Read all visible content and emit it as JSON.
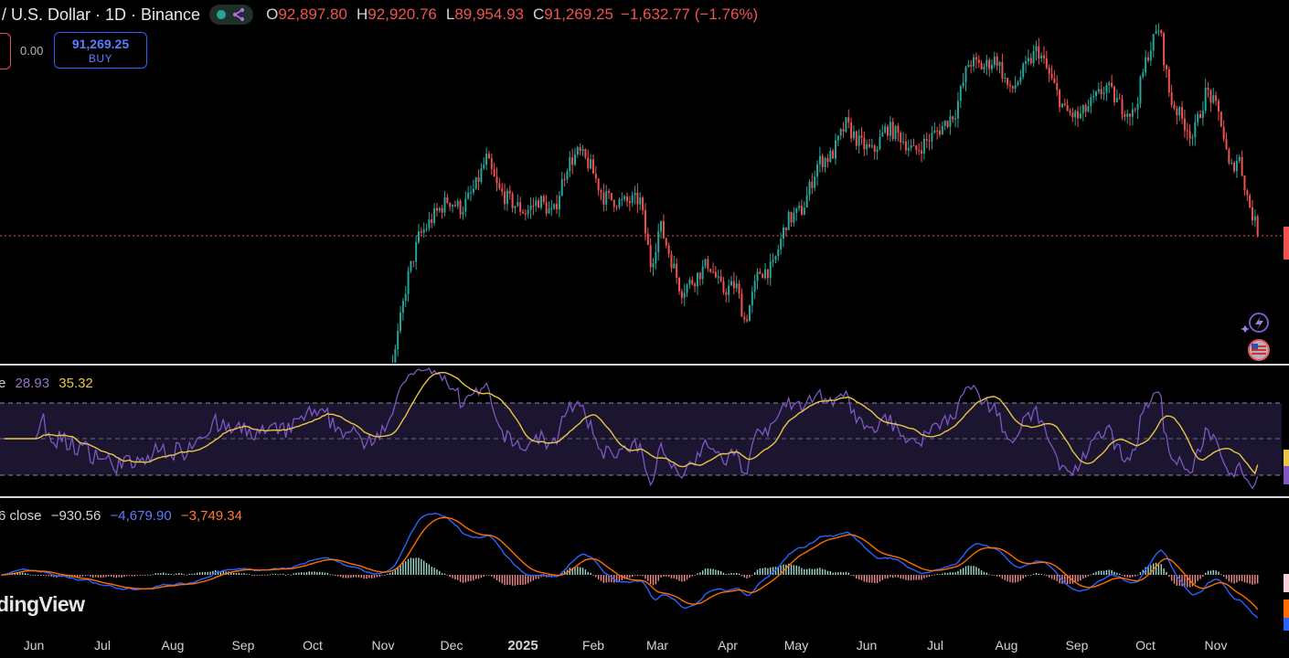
{
  "header": {
    "symbol": "/ U.S. Dollar · 1D · Binance",
    "ohlc": [
      {
        "k": "O",
        "v": "92,897.80"
      },
      {
        "k": "H",
        "v": "92,920.76"
      },
      {
        "k": "L",
        "v": "89,954.93"
      },
      {
        "k": "C",
        "v": "91,269.25"
      }
    ],
    "change": "−1,632.77 (−1.76%)"
  },
  "trade": {
    "spread": "0.00",
    "buy_price": "91,269.25",
    "buy_label": "BUY"
  },
  "rsi_legend": {
    "prefix": "e",
    "rsi": "28.93",
    "ma": "35.32"
  },
  "macd_legend": {
    "prefix": "6 close",
    "hist": "−930.56",
    "macd": "−4,679.90",
    "signal": "−3,749.34"
  },
  "watermark": "dingView",
  "colors": {
    "up": "#26a69a",
    "down": "#ef5350",
    "rsi": "#7e57c2",
    "rsi_ma": "#e8c547",
    "macd": "#2962ff",
    "signal": "#ff6d00"
  },
  "chart_data": {
    "type": "candlestick",
    "x_labels": [
      "Jun",
      "Jul",
      "Aug",
      "Sep",
      "Oct",
      "Nov",
      "Dec",
      "2025",
      "Feb",
      "Mar",
      "Apr",
      "May",
      "Jun",
      "Jul",
      "Aug",
      "Sep",
      "Oct",
      "Nov"
    ],
    "price_close_series": [
      [
        0,
        67500
      ],
      [
        40,
        68000
      ],
      [
        60,
        66500
      ],
      [
        90,
        65000
      ],
      [
        120,
        61500
      ],
      [
        150,
        58500
      ],
      [
        180,
        59000
      ],
      [
        200,
        57500
      ],
      [
        230,
        60500
      ],
      [
        250,
        61000
      ],
      [
        280,
        61500
      ],
      [
        310,
        62500
      ],
      [
        340,
        67500
      ],
      [
        360,
        68500
      ],
      [
        380,
        67500
      ],
      [
        400,
        66500
      ],
      [
        420,
        68500
      ],
      [
        432,
        72500
      ],
      [
        445,
        84000
      ],
      [
        458,
        91000
      ],
      [
        475,
        94500
      ],
      [
        490,
        97000
      ],
      [
        505,
        95500
      ],
      [
        520,
        99000
      ],
      [
        532,
        103500
      ],
      [
        545,
        98500
      ],
      [
        560,
        96500
      ],
      [
        575,
        95000
      ],
      [
        590,
        97000
      ],
      [
        605,
        94500
      ],
      [
        620,
        102500
      ],
      [
        633,
        104500
      ],
      [
        645,
        102500
      ],
      [
        660,
        97500
      ],
      [
        680,
        96500
      ],
      [
        700,
        97000
      ],
      [
        712,
        86500
      ],
      [
        722,
        93000
      ],
      [
        732,
        88500
      ],
      [
        745,
        82500
      ],
      [
        760,
        84500
      ],
      [
        775,
        87000
      ],
      [
        790,
        82500
      ],
      [
        805,
        83500
      ],
      [
        815,
        77500
      ],
      [
        830,
        85500
      ],
      [
        845,
        86000
      ],
      [
        860,
        93500
      ],
      [
        878,
        95500
      ],
      [
        895,
        103000
      ],
      [
        910,
        104000
      ],
      [
        925,
        109000
      ],
      [
        940,
        106000
      ],
      [
        955,
        104500
      ],
      [
        970,
        108500
      ],
      [
        985,
        107000
      ],
      [
        1000,
        104500
      ],
      [
        1015,
        106500
      ],
      [
        1030,
        108500
      ],
      [
        1045,
        111000
      ],
      [
        1060,
        119000
      ],
      [
        1075,
        118000
      ],
      [
        1090,
        119500
      ],
      [
        1105,
        114000
      ],
      [
        1120,
        117500
      ],
      [
        1135,
        121000
      ],
      [
        1150,
        116000
      ],
      [
        1165,
        111000
      ],
      [
        1180,
        110000
      ],
      [
        1195,
        112500
      ],
      [
        1210,
        115000
      ],
      [
        1225,
        112000
      ],
      [
        1240,
        110500
      ],
      [
        1255,
        120000
      ],
      [
        1268,
        124500
      ],
      [
        1280,
        113000
      ],
      [
        1292,
        110000
      ],
      [
        1305,
        107000
      ],
      [
        1320,
        114500
      ],
      [
        1335,
        110000
      ],
      [
        1345,
        101500
      ],
      [
        1355,
        104000
      ],
      [
        1365,
        97000
      ],
      [
        1377,
        91269
      ]
    ],
    "rsi": {
      "last": 28.93,
      "ma_last": 35.32,
      "bands": [
        70,
        50,
        30
      ]
    },
    "macd": {
      "hist_last": -930.56,
      "macd_last": -4679.9,
      "signal_last": -3749.34
    }
  }
}
